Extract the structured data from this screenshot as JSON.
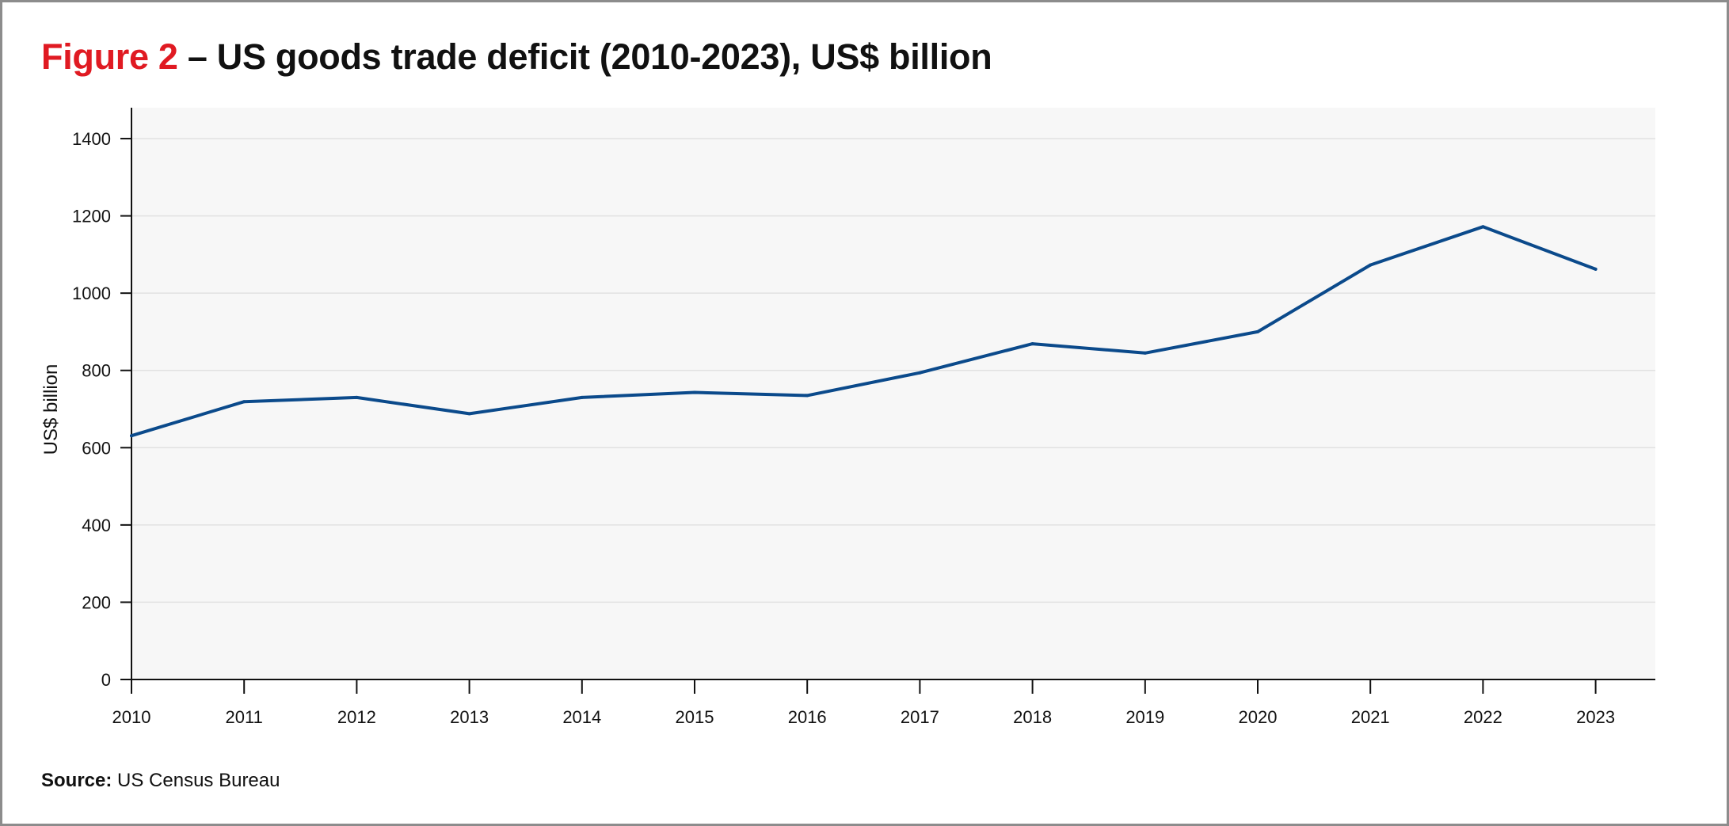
{
  "figure": {
    "label": "Figure 2",
    "title": "– US goods trade deficit (2010-2023), US$ billion"
  },
  "source": {
    "label": "Source:",
    "text": "US Census Bureau"
  },
  "colors": {
    "accent": "#e01a22",
    "line": "#0b4a8b",
    "plot_bg": "#f7f7f7",
    "grid": "#e2e2e2",
    "axis": "#111111"
  },
  "chart_data": {
    "type": "line",
    "title": "US goods trade deficit (2010-2023), US$ billion",
    "xlabel": "",
    "ylabel": "US$ billion",
    "ylim": [
      0,
      1480
    ],
    "yticks": [
      0,
      200,
      400,
      600,
      800,
      1000,
      1200,
      1400
    ],
    "x": [
      2010,
      2011,
      2012,
      2013,
      2014,
      2015,
      2016,
      2017,
      2018,
      2019,
      2020,
      2021,
      2022,
      2023
    ],
    "xtick_labels": [
      "2010",
      "2011",
      "2012",
      "2013",
      "2014",
      "2015",
      "2016",
      "2017",
      "2018",
      "2019",
      "2020",
      "2021",
      "2022",
      "2023"
    ],
    "grid": true,
    "legend": "none",
    "series": [
      {
        "x": [
          2010,
          2011,
          2012,
          2013,
          2014,
          2015,
          2016,
          2017,
          2018,
          2019,
          2020,
          2021,
          2022,
          2023
        ],
        "values": [
          631,
          719,
          730,
          688,
          730,
          743,
          735,
          794,
          869,
          845,
          900,
          1073,
          1172,
          1062
        ]
      }
    ]
  }
}
